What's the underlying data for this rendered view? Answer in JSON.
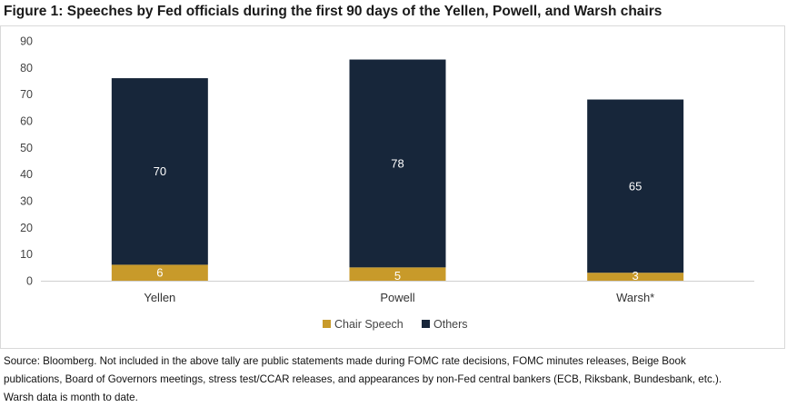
{
  "title": "Figure 1: Speeches by Fed officials during the first 90 days of the Yellen, Powell, and Warsh chairs",
  "source": {
    "line1": "Source: Bloomberg.  Not included in the above tally are public statements made during FOMC rate decisions, FOMC minutes releases, Beige Book",
    "line2": "publications, Board of Governors meetings, stress test/CCAR releases, and appearances by non-Fed central bankers (ECB, Riksbank, Bundesbank, etc.).",
    "line3": "Warsh data is month to date."
  },
  "chart_data": {
    "type": "bar",
    "stacked": true,
    "categories": [
      "Yellen",
      "Powell",
      "Warsh*"
    ],
    "series": [
      {
        "name": "Chair Speech",
        "values": [
          6,
          5,
          3
        ],
        "color": "#c89a2a"
      },
      {
        "name": "Others",
        "values": [
          70,
          78,
          65
        ],
        "color": "#17263a"
      }
    ],
    "ylim": [
      0,
      90
    ],
    "yticks": [
      0,
      10,
      20,
      30,
      40,
      50,
      60,
      70,
      80,
      90
    ],
    "grid": false,
    "legend": "bottom",
    "xlabel": "",
    "ylabel": ""
  }
}
